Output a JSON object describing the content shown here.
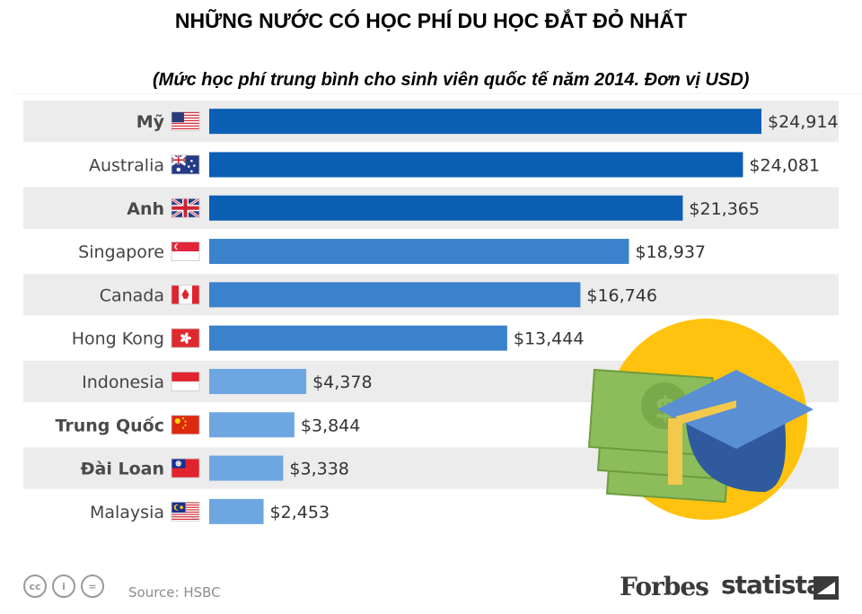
{
  "title": "NHỮNG NƯỚC CÓ HỌC PHÍ DU HỌC ĐẮT ĐỎ NHẤT",
  "subtitle": "(Mức học phí trung bình cho sinh viên quốc tế năm 2014. Đơn vị USD)",
  "source": "Source: HSBC",
  "brands": {
    "forbes": "Forbes",
    "statista": "statista"
  },
  "footer_icons": [
    "cc",
    "i",
    "="
  ],
  "colors": {
    "bar_dark": "#0a5fb4",
    "bar_mid": "#3b82cc",
    "bar_light": "#6ea6e2",
    "row_shade": "#ececec",
    "coin": "#ffc20e",
    "bill": "#8cbd5a",
    "cap": "#5a8fd4"
  },
  "illustration": "money-and-graduation-cap",
  "chart_data": {
    "type": "bar",
    "orientation": "horizontal",
    "categories": [
      "Mỹ",
      "Australia",
      "Anh",
      "Singapore",
      "Canada",
      "Hong Kong",
      "Indonesia",
      "Trung Quốc",
      "Đài Loan",
      "Malaysia"
    ],
    "flags": [
      "us",
      "au",
      "gb",
      "sg",
      "ca",
      "hk",
      "id",
      "cn",
      "tw",
      "my"
    ],
    "bold_categories": [
      "Mỹ",
      "Anh",
      "Trung Quốc",
      "Đài Loan"
    ],
    "values": [
      24914,
      24081,
      21365,
      18937,
      16746,
      13444,
      4378,
      3844,
      3338,
      2453
    ],
    "labels": [
      "$24,914",
      "$24,081",
      "$21,365",
      "$18,937",
      "$16,746",
      "$13,444",
      "$4,378",
      "$3,844",
      "$3,338",
      "$2,453"
    ],
    "xlim": [
      0,
      24914
    ],
    "grid": false,
    "legend": "none"
  }
}
